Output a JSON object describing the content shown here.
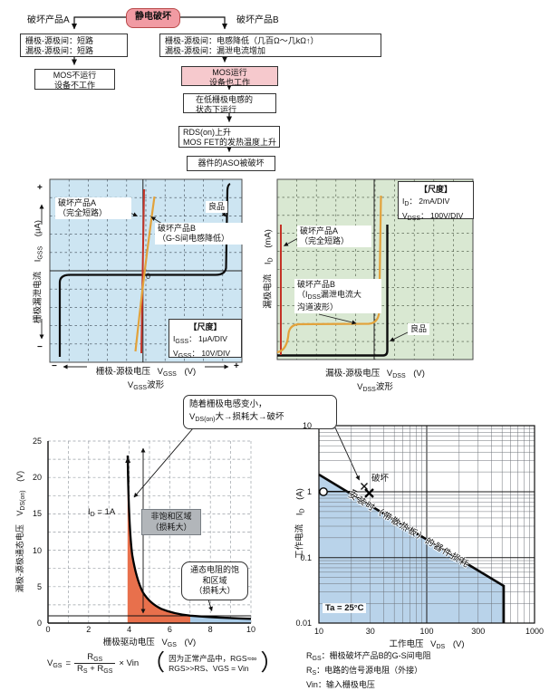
{
  "flowchart": {
    "root": "静电破坏",
    "branch_a": "破坏产品A",
    "branch_b": "破坏产品B",
    "a1_line1": "栅极-源极间：短路",
    "a1_line2": "漏极-源极间：短路",
    "a2_line1": "MOS不运行",
    "a2_line2": "设备不工作",
    "b1_line1": "栅极-源极间：电感降低（几百Ω～几kΩ↑）",
    "b1_line2": "漏极-源极间：漏泄电流增加",
    "b2_line1": "MOS运行",
    "b2_line2": "设备也工作",
    "b3_line1": "在低栅极电感的",
    "b3_line2": "状态下运行",
    "b4_line1": "RDS(on)上升",
    "b4_line2": "MOS FET的发热温度上升",
    "b5": "器件的ASO被破坏"
  },
  "scope_left": {
    "label_a_line1": "破坏产品A",
    "label_a_line2": "（完全短路）",
    "label_b_line1": "破坏产品B",
    "label_b_line2": "（G-S间电感降低）",
    "label_good": "良品",
    "zero": "0",
    "scale_title": "【尺度】",
    "scale1_sym": "I",
    "scale1_sub": "GSS",
    "scale1_val": "： 1μA/DIV",
    "scale2_sym": "V",
    "scale2_sub": "GSS",
    "scale2_val": "： 10V/DIV",
    "y_label": "栅极漏泄电流",
    "y_sym": "I",
    "y_sub": "GSS",
    "y_unit": "(μA)",
    "y_plus": "+",
    "y_minus": "−",
    "x_label": "栅极-源极电压",
    "x_sym": "V",
    "x_sub": "GSS",
    "x_unit": "(V)",
    "x_minus": "−",
    "x_plus": "+",
    "wave_sym": "V",
    "wave_sub": "GSS",
    "wave_text": "波形"
  },
  "scope_right": {
    "scale_title": "【尺度】",
    "scale1_sym": "I",
    "scale1_sub": "D",
    "scale1_val": "： 2mA/DIV",
    "scale2_sym": "V",
    "scale2_sub": "DSS",
    "scale2_val": "： 100V/DIV",
    "label_a_line1": "破坏产品A",
    "label_a_line2": "（完全短路）",
    "label_b_line1": "破坏产品B",
    "label_b_line2a": "（I",
    "label_b_line2sub": "DSS",
    "label_b_line2b": "漏泄电流大",
    "label_b_line3": "沟道波形）",
    "label_good": "良品",
    "y_label": "漏极电流",
    "y_sym": "I",
    "y_sub": "D",
    "y_unit": "(mA)",
    "x_label": "漏极-源极电压",
    "x_sym": "V",
    "x_sub": "DSS",
    "x_unit": "(V)",
    "wave_sym": "V",
    "wave_sub": "DSS",
    "wave_text": "波形"
  },
  "vdson_chart": {
    "id_sym": "I",
    "id_sub": "D",
    "id_val": " = 1A",
    "unsat_line1": "非饱和区域",
    "unsat_line2": "（损耗大）",
    "sat_line1": "通态电阻的饱",
    "sat_line2": "和区域",
    "sat_line3": "（损耗大）",
    "y_label": "漏极-源极通态电压",
    "y_sym": "V",
    "y_sub": "DS(on)",
    "y_unit": "(V)",
    "x_label": "栅极驱动电压",
    "x_sym": "V",
    "x_sub": "GS",
    "x_unit": "(V)"
  },
  "callout": {
    "line1": "随着栅极电感变小，",
    "line2_sym": "V",
    "line2_sub": "DS(on)",
    "line2_rest": "大→损耗大→破坏"
  },
  "aso_chart": {
    "damage_label": "破坏",
    "diag_label": "安装时（带散热板）的器件损耗",
    "temp_label": "Ta = 25°C",
    "y_label": "工作电流",
    "y_sym": "I",
    "y_sub": "D",
    "y_unit": "(A)",
    "x_label": "工作电压",
    "x_sym": "V",
    "x_sub": "DS",
    "x_unit": "(V)"
  },
  "formula": {
    "v": "V",
    "v_sub": "GS",
    "eq": "=",
    "num_r": "R",
    "num_r_sub": "GS",
    "den_r1": "R",
    "den_r1_sub": "S",
    "den_plus": " + ",
    "den_r2": "R",
    "den_r2_sub": "GS",
    "times": "× Vin",
    "paren_open": "（",
    "paren_close": "）",
    "note1": "因为正常产品中，RGS≈∞",
    "note2": "RGS>>RS、VGS = Vin"
  },
  "legend": {
    "r1_sym": "R",
    "r1_sub": "GS",
    "r1_text": "：栅极破坏产品B的G-S间电阻",
    "r2_sym": "R",
    "r2_sub": "S",
    "r2_text": "：电路的信号源电阻（外接）",
    "r3_sym": "Vin",
    "r3_text": "：输入栅极电压"
  },
  "colors": {
    "pink_accent": "#f19ba3",
    "pink_light": "#f6c9cd",
    "scope_blue_bg": "#cde5f2",
    "scope_green_bg": "#d9e8d2",
    "trace_red": "#c43226",
    "trace_yellow": "#e2a23b",
    "trace_black": "#0d0d0d",
    "fill_orange": "#e8704c",
    "fill_blue_small": "#a9cbe7",
    "fill_blue_aso": "#b9d3ea"
  },
  "chart_data": [
    {
      "type": "line",
      "name": "gate_leakage_vs_vgss",
      "title": "VGSS波形",
      "xlabel": "栅极-源极电压 VGSS (V)",
      "ylabel": "栅极漏泄电流 IGSS (μA)",
      "x_scale": "10V/DIV",
      "y_scale": "1μA/DIV",
      "grid": "10x10 divisions, dashed",
      "series": [
        {
          "name": "良品",
          "color": "#0d0d0d",
          "points_div": [
            [
              -4.3,
              -4.5
            ],
            [
              -4.3,
              -0.2
            ],
            [
              3.8,
              -0.2
            ],
            [
              4.3,
              0
            ],
            [
              4.5,
              4.8
            ]
          ]
        },
        {
          "name": "破坏产品A（完全短路）",
          "color": "#c43226",
          "points_div": [
            [
              0,
              -4.3
            ],
            [
              0,
              4.5
            ]
          ]
        },
        {
          "name": "破坏产品B（G-S间电感降低）",
          "color": "#e2a23b",
          "points_div": [
            [
              -0.45,
              -4.2
            ],
            [
              0.6,
              4.0
            ]
          ]
        }
      ]
    },
    {
      "type": "line",
      "name": "drain_current_vs_vdss",
      "title": "VDSS波形",
      "xlabel": "漏极-源极电压 VDSS (V)",
      "ylabel": "漏极电流 ID (mA)",
      "x_scale": "100V/DIV",
      "y_scale": "2mA/DIV",
      "grid": "10x10 divisions, dashed",
      "series": [
        {
          "name": "良品",
          "color": "#0d0d0d",
          "points_div": [
            [
              0,
              0
            ],
            [
              5.6,
              0
            ],
            [
              5.65,
              7.2
            ]
          ]
        },
        {
          "name": "破坏产品A（完全短路）",
          "color": "#c43226",
          "points_div": [
            [
              0.2,
              0.2
            ],
            [
              0.2,
              7.3
            ]
          ]
        },
        {
          "name": "破坏产品B（IDSS漏泄电流大，沟道波形）",
          "color": "#e2a23b",
          "points_div": [
            [
              0,
              0.3
            ],
            [
              0.6,
              1.9
            ],
            [
              4.8,
              2.0
            ],
            [
              5.3,
              9.1
            ]
          ]
        }
      ]
    },
    {
      "type": "area-line",
      "name": "vdson_vs_vgs",
      "condition": "ID = 1A",
      "xlabel": "栅极驱动电压 VGS (V)",
      "ylabel": "漏极-源极通态电压 VDS(on) (V)",
      "xlim": [
        0,
        10
      ],
      "ylim": [
        0,
        25
      ],
      "x_ticks": [
        0,
        2,
        4,
        6,
        8,
        10
      ],
      "y_ticks": [
        0,
        5,
        10,
        15,
        20,
        25
      ],
      "x": [
        3.9,
        4.0,
        4.2,
        4.5,
        5.0,
        5.5,
        6.0,
        6.5,
        7.0,
        8.0,
        9.0,
        10.0
      ],
      "y": [
        25,
        18.5,
        11,
        5.8,
        3.2,
        2.1,
        1.55,
        1.25,
        1.05,
        0.85,
        0.72,
        0.62
      ],
      "reference_line_y": 1,
      "regions": [
        {
          "label": "非饱和区域（损耗大）",
          "x_range": [
            3.9,
            7
          ],
          "fill": "#e8704c"
        },
        {
          "label": "通态电阻的饱和区域（损耗大）",
          "x_range": [
            7,
            10
          ],
          "fill": "#a9cbe7"
        }
      ]
    },
    {
      "type": "line",
      "name": "aso_boundary",
      "log_x": true,
      "log_y": true,
      "xlabel": "工作电压 VDS (V)",
      "ylabel": "工作电流 ID (A)",
      "xlim": [
        10,
        1000
      ],
      "ylim": [
        0.01,
        10
      ],
      "x_ticks": [
        10,
        30,
        100,
        300,
        1000
      ],
      "y_ticks": [
        10,
        1,
        0.1,
        0.01
      ],
      "boundary": [
        [
          10,
          1.9
        ],
        [
          500,
          0.04
        ],
        [
          500,
          0.01
        ]
      ],
      "operating_point": [
        11,
        1
      ],
      "damage_point": [
        30,
        1.1
      ],
      "temp": "Ta = 25°C",
      "boundary_label": "安装时（带散热板）的器件损耗",
      "damage_label": "破坏"
    }
  ]
}
